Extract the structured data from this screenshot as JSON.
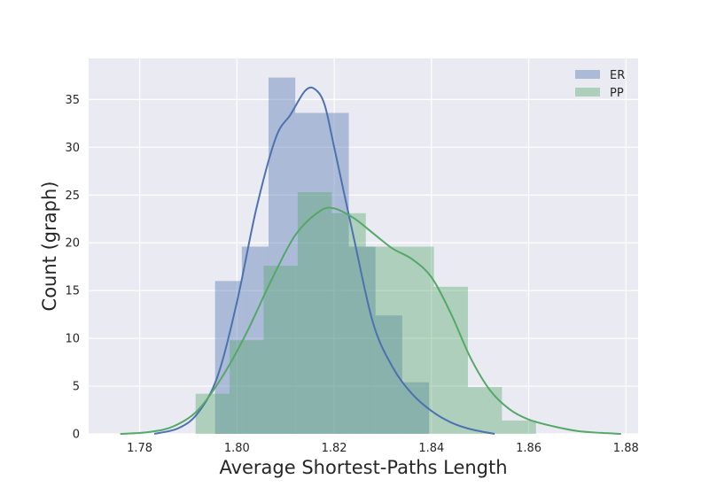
{
  "chart_data": {
    "type": "bar",
    "title": "",
    "xlabel": "Average Shortest-Paths Length",
    "ylabel": "Count (graph)",
    "xlim": [
      1.7695,
      1.8825
    ],
    "ylim": [
      0,
      39.3
    ],
    "xticks": [
      {
        "value": 1.78,
        "label": "1.78"
      },
      {
        "value": 1.8,
        "label": "1.80"
      },
      {
        "value": 1.82,
        "label": "1.82"
      },
      {
        "value": 1.84,
        "label": "1.84"
      },
      {
        "value": 1.86,
        "label": "1.86"
      },
      {
        "value": 1.88,
        "label": "1.88"
      }
    ],
    "yticks": [
      {
        "value": 0,
        "label": "0"
      },
      {
        "value": 5,
        "label": "5"
      },
      {
        "value": 10,
        "label": "10"
      },
      {
        "value": 15,
        "label": "15"
      },
      {
        "value": 20,
        "label": "20"
      },
      {
        "value": 25,
        "label": "25"
      },
      {
        "value": 30,
        "label": "30"
      },
      {
        "value": 35,
        "label": "35"
      }
    ],
    "grid": true,
    "legend_position": "top-right",
    "colors": {
      "background": "#eaeaf2",
      "grid": "#ffffff",
      "ER": "#4c72b0",
      "PP": "#55a868",
      "text": "#262626"
    },
    "series": [
      {
        "name": "ER",
        "bin_width": 0.0055,
        "bins": [
          {
            "x0": 1.7955,
            "value": 16.0
          },
          {
            "x0": 1.801,
            "value": 19.6
          },
          {
            "x0": 1.8065,
            "value": 37.3
          },
          {
            "x0": 1.812,
            "value": 33.6
          },
          {
            "x0": 1.8175,
            "value": 33.6
          },
          {
            "x0": 1.823,
            "value": 19.6
          },
          {
            "x0": 1.8285,
            "value": 12.4
          },
          {
            "x0": 1.834,
            "value": 5.4
          },
          {
            "x0": 1.8395,
            "value": 0
          }
        ],
        "kde": [
          [
            1.783,
            0
          ],
          [
            1.788,
            0.6
          ],
          [
            1.792,
            2.2
          ],
          [
            1.796,
            6.0
          ],
          [
            1.8,
            13.8
          ],
          [
            1.804,
            23.6
          ],
          [
            1.808,
            31.0
          ],
          [
            1.811,
            33.4
          ],
          [
            1.814,
            35.9
          ],
          [
            1.816,
            36.1
          ],
          [
            1.818,
            34.5
          ],
          [
            1.82,
            30.0
          ],
          [
            1.824,
            20.6
          ],
          [
            1.828,
            11.6
          ],
          [
            1.832,
            7.0
          ],
          [
            1.836,
            4.2
          ],
          [
            1.84,
            2.4
          ],
          [
            1.844,
            1.2
          ],
          [
            1.848,
            0.5
          ],
          [
            1.853,
            0
          ]
        ]
      },
      {
        "name": "PP",
        "bin_width": 0.007,
        "bins": [
          {
            "x0": 1.7915,
            "value": 4.2
          },
          {
            "x0": 1.7985,
            "value": 9.8
          },
          {
            "x0": 1.8055,
            "value": 17.6
          },
          {
            "x0": 1.8125,
            "value": 25.3
          },
          {
            "x0": 1.8195,
            "value": 23.1
          },
          {
            "x0": 1.8265,
            "value": 19.6
          },
          {
            "x0": 1.8335,
            "value": 19.6
          },
          {
            "x0": 1.8405,
            "value": 15.4
          },
          {
            "x0": 1.8475,
            "value": 4.9
          },
          {
            "x0": 1.8545,
            "value": 1.4
          }
        ],
        "kde": [
          [
            1.776,
            0
          ],
          [
            1.782,
            0.2
          ],
          [
            1.787,
            0.8
          ],
          [
            1.792,
            2.5
          ],
          [
            1.797,
            6.0
          ],
          [
            1.802,
            10.6
          ],
          [
            1.807,
            16.0
          ],
          [
            1.812,
            20.8
          ],
          [
            1.817,
            23.3
          ],
          [
            1.82,
            23.6
          ],
          [
            1.824,
            22.6
          ],
          [
            1.828,
            21.0
          ],
          [
            1.832,
            19.4
          ],
          [
            1.836,
            18.3
          ],
          [
            1.84,
            16.4
          ],
          [
            1.844,
            12.6
          ],
          [
            1.848,
            8.0
          ],
          [
            1.852,
            4.6
          ],
          [
            1.856,
            2.6
          ],
          [
            1.86,
            1.5
          ],
          [
            1.865,
            0.8
          ],
          [
            1.87,
            0.3
          ],
          [
            1.875,
            0.1
          ],
          [
            1.879,
            0
          ]
        ]
      }
    ]
  }
}
